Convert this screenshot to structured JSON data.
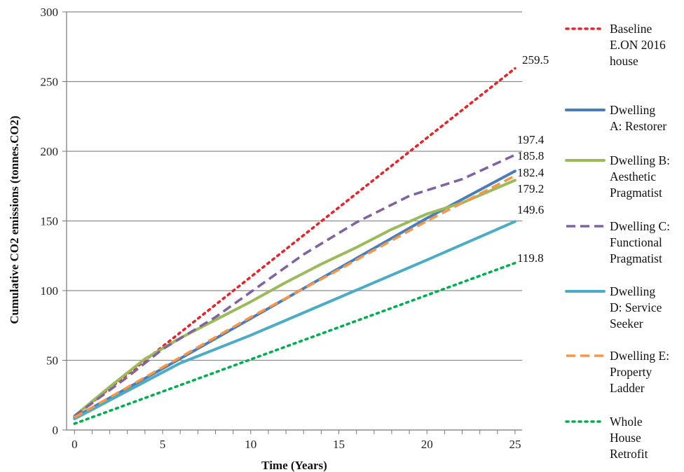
{
  "chart_data": {
    "type": "line",
    "title": "",
    "xlabel": "Time (Years)",
    "ylabel": "Cumulative CO2 emissions (tonnes.CO2)",
    "xlim": [
      0,
      25
    ],
    "ylim": [
      0,
      300
    ],
    "x_ticks": [
      "0",
      "5",
      "10",
      "15",
      "20",
      "25"
    ],
    "y_ticks": [
      "0",
      "50",
      "100",
      "150",
      "200",
      "250",
      "300"
    ],
    "grid": "horizontal",
    "legend_position": "right",
    "series": [
      {
        "name": "Baseline E.ON 2016 house",
        "legend_lines": [
          "Baseline",
          "E.ON 2016",
          "house"
        ],
        "color": "#e8232a",
        "style": "dotted",
        "end_label": "259.5",
        "points": [
          [
            0,
            10
          ],
          [
            25,
            259.5
          ]
        ]
      },
      {
        "name": "Dwelling A: Restorer",
        "legend_lines": [
          "Dwelling",
          "A: Restorer"
        ],
        "color": "#4a7ebb",
        "style": "solid",
        "end_label": "185.8",
        "points": [
          [
            0,
            9
          ],
          [
            5,
            44
          ],
          [
            10,
            80
          ],
          [
            15,
            116
          ],
          [
            20,
            152
          ],
          [
            25,
            185.8
          ]
        ]
      },
      {
        "name": "Dwelling B: Aesthetic Pragmatist",
        "legend_lines": [
          "Dwelling B:",
          "Aesthetic",
          "Pragmatist"
        ],
        "color": "#9bbb59",
        "style": "solid",
        "end_label": "179.2",
        "points": [
          [
            0,
            10
          ],
          [
            2,
            31
          ],
          [
            4,
            51
          ],
          [
            6,
            66
          ],
          [
            8,
            79
          ],
          [
            10,
            92
          ],
          [
            12,
            106
          ],
          [
            14,
            119
          ],
          [
            16,
            131
          ],
          [
            18,
            144
          ],
          [
            20,
            155
          ],
          [
            22,
            163
          ],
          [
            25,
            179.2
          ]
        ]
      },
      {
        "name": "Dwelling C: Functional Pragmatist",
        "legend_lines": [
          "Dwelling C:",
          "Functional",
          "Pragmatist"
        ],
        "color": "#8064a2",
        "style": "dashed",
        "end_label": "197.4",
        "points": [
          [
            0,
            10
          ],
          [
            3,
            38
          ],
          [
            5,
            58
          ],
          [
            8,
            81
          ],
          [
            10,
            99
          ],
          [
            13,
            126
          ],
          [
            16,
            149
          ],
          [
            19,
            168
          ],
          [
            22,
            180
          ],
          [
            25,
            197.4
          ]
        ]
      },
      {
        "name": "Dwelling D: Service Seeker",
        "legend_lines": [
          "Dwelling",
          "D: Service",
          "Seeker"
        ],
        "color": "#4bacc6",
        "style": "solid",
        "end_label": "149.6",
        "points": [
          [
            0,
            8
          ],
          [
            6,
            48
          ],
          [
            10,
            68
          ],
          [
            15,
            95
          ],
          [
            20,
            122
          ],
          [
            25,
            149.6
          ]
        ]
      },
      {
        "name": "Dwelling E: Property Ladder",
        "legend_lines": [
          "Dwelling E:",
          "Property",
          "Ladder"
        ],
        "color": "#f79646",
        "style": "dashed",
        "end_label": "182.4",
        "points": [
          [
            0,
            9
          ],
          [
            5,
            45
          ],
          [
            10,
            81
          ],
          [
            15,
            115
          ],
          [
            20,
            150
          ],
          [
            25,
            182.4
          ]
        ]
      },
      {
        "name": "Whole House Retrofit",
        "legend_lines": [
          "Whole",
          "House",
          "Retrofit"
        ],
        "color": "#00b050",
        "style": "dotted",
        "end_label": "119.8",
        "points": [
          [
            0,
            4.5
          ],
          [
            25,
            119.8
          ]
        ]
      }
    ]
  }
}
